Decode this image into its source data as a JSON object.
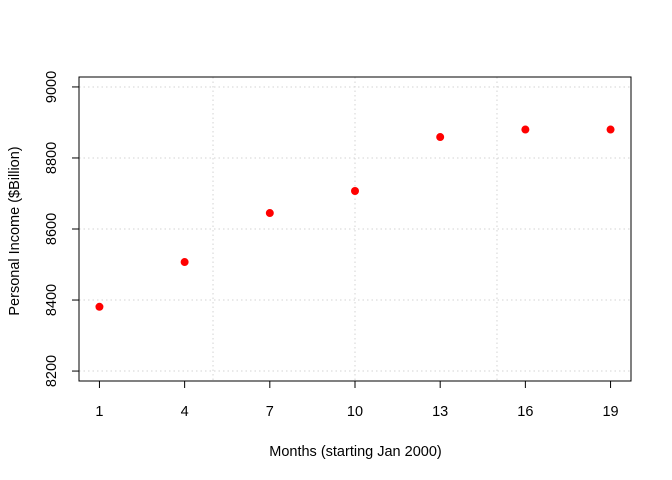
{
  "chart_data": {
    "type": "scatter",
    "title": "",
    "xlabel": "Months (starting Jan 2000)",
    "ylabel": "Personal Income ($Billion)",
    "x": [
      1,
      4,
      7,
      10,
      13,
      16,
      19
    ],
    "y": [
      8381,
      8507,
      8645,
      8707,
      8859,
      8880,
      8880
    ],
    "xlim": [
      0.28,
      19.72
    ],
    "ylim": [
      8172,
      9028
    ],
    "x_ticks": [
      1,
      4,
      7,
      10,
      13,
      16,
      19
    ],
    "x_tick_labels": [
      "1",
      "4",
      "7",
      "10",
      "13",
      "16",
      "19"
    ],
    "y_ticks": [
      8200,
      8400,
      8600,
      8800,
      9000
    ],
    "y_tick_labels": [
      "8200",
      "8400",
      "8600",
      "8800",
      "9000"
    ],
    "x_grid": [
      0,
      5,
      10,
      15,
      20
    ],
    "y_grid": [
      8200,
      8400,
      8600,
      8800,
      9000
    ],
    "grid": true,
    "grid_style": "dotted",
    "marker": "filled-circle",
    "point_color": "#ff0000",
    "grid_color": "#d3d3d3",
    "legend": "none"
  }
}
